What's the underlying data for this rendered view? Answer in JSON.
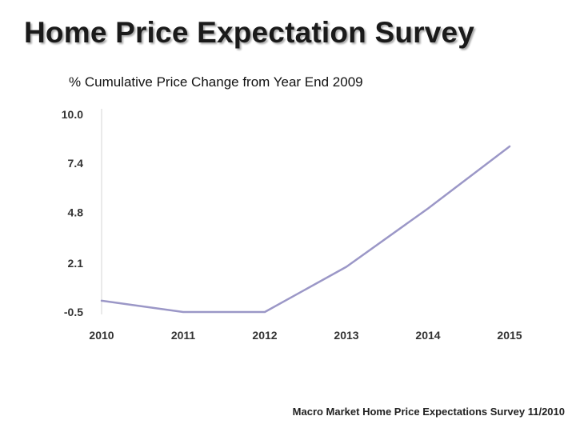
{
  "page": {
    "title": "Home Price Expectation Survey",
    "subtitle": "% Cumulative Price Change from Year End 2009",
    "footer": "Macro Market Home Price Expectations Survey 11/2010"
  },
  "colors": {
    "line": "#9b97c7",
    "axis": "#d4d4d4",
    "text": "#333333"
  },
  "chart_data": {
    "type": "line",
    "title": "Home Price Expectation Survey",
    "subtitle": "% Cumulative Price Change from Year End 2009",
    "xlabel": "",
    "ylabel": "% Cumulative Price Change from Year End 2009",
    "categories": [
      "2010",
      "2011",
      "2012",
      "2013",
      "2014",
      "2015"
    ],
    "series": [
      {
        "name": "Cumulative Price Change",
        "values": [
          0.1,
          -0.5,
          -0.5,
          1.9,
          5.0,
          8.3
        ]
      }
    ],
    "yticks": [
      "10.0",
      "7.4",
      "4.8",
      "2.1",
      "-0.5"
    ],
    "ylim": [
      -0.5,
      10.0
    ],
    "grid": false,
    "legend": "none"
  }
}
